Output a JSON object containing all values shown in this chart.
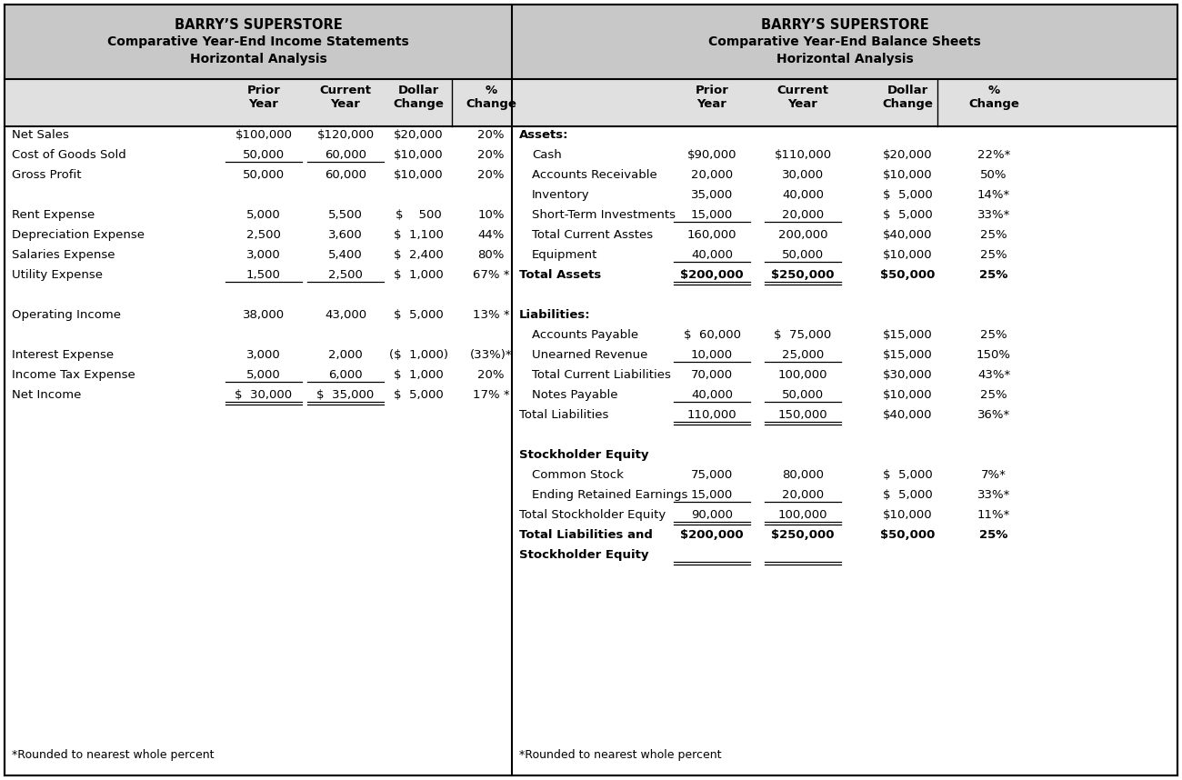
{
  "fig_width": 13.0,
  "fig_height": 8.58,
  "bg_color": "#ffffff",
  "header_bg": "#c8c8c8",
  "subheader_bg": "#e0e0e0",
  "left_title": [
    "BARRY’S SUPERSTORE",
    "Comparative Year-End Income Statements",
    "Horizontal Analysis"
  ],
  "right_title": [
    "BARRY’S SUPERSTORE",
    "Comparative Year-End Balance Sheets",
    "Horizontal Analysis"
  ],
  "left_col_headers": [
    "Prior\nYear",
    "Current\nYear",
    "Dollar\nChange",
    "%\nChange"
  ],
  "right_col_headers": [
    "Prior\nYear",
    "Current\nYear",
    "Dollar\nChange",
    "%\nChange"
  ],
  "left_rows": [
    {
      "label": "Net Sales",
      "prior": "$100,000",
      "current": "$120,000",
      "dollar": "$20,000",
      "pct": "20%",
      "bold": false,
      "ul_p": false,
      "ul_c": false,
      "dul": false
    },
    {
      "label": "Cost of Goods Sold",
      "prior": "50,000",
      "current": "60,000",
      "dollar": "$10,000",
      "pct": "20%",
      "bold": false,
      "ul_p": true,
      "ul_c": true,
      "dul": false
    },
    {
      "label": "Gross Profit",
      "prior": "50,000",
      "current": "60,000",
      "dollar": "$10,000",
      "pct": "20%",
      "bold": false,
      "ul_p": false,
      "ul_c": false,
      "dul": false
    },
    {
      "label": "",
      "prior": "",
      "current": "",
      "dollar": "",
      "pct": "",
      "bold": false,
      "ul_p": false,
      "ul_c": false,
      "dul": false
    },
    {
      "label": "Rent Expense",
      "prior": "5,000",
      "current": "5,500",
      "dollar": "$    500",
      "pct": "10%",
      "bold": false,
      "ul_p": false,
      "ul_c": false,
      "dul": false
    },
    {
      "label": "Depreciation Expense",
      "prior": "2,500",
      "current": "3,600",
      "dollar": "$  1,100",
      "pct": "44%",
      "bold": false,
      "ul_p": false,
      "ul_c": false,
      "dul": false
    },
    {
      "label": "Salaries Expense",
      "prior": "3,000",
      "current": "5,400",
      "dollar": "$  2,400",
      "pct": "80%",
      "bold": false,
      "ul_p": false,
      "ul_c": false,
      "dul": false
    },
    {
      "label": "Utility Expense",
      "prior": "1,500",
      "current": "2,500",
      "dollar": "$  1,000",
      "pct": "67% *",
      "bold": false,
      "ul_p": true,
      "ul_c": true,
      "dul": false
    },
    {
      "label": "",
      "prior": "",
      "current": "",
      "dollar": "",
      "pct": "",
      "bold": false,
      "ul_p": false,
      "ul_c": false,
      "dul": false
    },
    {
      "label": "Operating Income",
      "prior": "38,000",
      "current": "43,000",
      "dollar": "$  5,000",
      "pct": "13% *",
      "bold": false,
      "ul_p": false,
      "ul_c": false,
      "dul": false
    },
    {
      "label": "",
      "prior": "",
      "current": "",
      "dollar": "",
      "pct": "",
      "bold": false,
      "ul_p": false,
      "ul_c": false,
      "dul": false
    },
    {
      "label": "Interest Expense",
      "prior": "3,000",
      "current": "2,000",
      "dollar": "($  1,000)",
      "pct": "(33%)*",
      "bold": false,
      "ul_p": false,
      "ul_c": false,
      "dul": false
    },
    {
      "label": "Income Tax Expense",
      "prior": "5,000",
      "current": "6,000",
      "dollar": "$  1,000",
      "pct": "20%",
      "bold": false,
      "ul_p": true,
      "ul_c": true,
      "dul": false
    },
    {
      "label": "Net Income",
      "prior": "$  30,000",
      "current": "$  35,000",
      "dollar": "$  5,000",
      "pct": "17% *",
      "bold": false,
      "ul_p": false,
      "ul_c": false,
      "dul": true
    }
  ],
  "right_rows": [
    {
      "label": "Assets:",
      "prior": "",
      "current": "",
      "dollar": "",
      "pct": "",
      "bold": true,
      "ul_p": false,
      "ul_c": false,
      "dul": false,
      "indent": false
    },
    {
      "label": "Cash",
      "prior": "$90,000",
      "current": "$110,000",
      "dollar": "$20,000",
      "pct": "22%*",
      "bold": false,
      "ul_p": false,
      "ul_c": false,
      "dul": false,
      "indent": true
    },
    {
      "label": "Accounts Receivable",
      "prior": "20,000",
      "current": "30,000",
      "dollar": "$10,000",
      "pct": "50%",
      "bold": false,
      "ul_p": false,
      "ul_c": false,
      "dul": false,
      "indent": true
    },
    {
      "label": "Inventory",
      "prior": "35,000",
      "current": "40,000",
      "dollar": "$  5,000",
      "pct": "14%*",
      "bold": false,
      "ul_p": false,
      "ul_c": false,
      "dul": false,
      "indent": true
    },
    {
      "label": "Short-Term Investments",
      "prior": "15,000",
      "current": "20,000",
      "dollar": "$  5,000",
      "pct": "33%*",
      "bold": false,
      "ul_p": true,
      "ul_c": true,
      "dul": false,
      "indent": true
    },
    {
      "label": "Total Current Asstes",
      "prior": "160,000",
      "current": "200,000",
      "dollar": "$40,000",
      "pct": "25%",
      "bold": false,
      "ul_p": false,
      "ul_c": false,
      "dul": false,
      "indent": true
    },
    {
      "label": "Equipment",
      "prior": "40,000",
      "current": "50,000",
      "dollar": "$10,000",
      "pct": "25%",
      "bold": false,
      "ul_p": true,
      "ul_c": true,
      "dul": false,
      "indent": true
    },
    {
      "label": "Total Assets",
      "prior": "$200,000",
      "current": "$250,000",
      "dollar": "$50,000",
      "pct": "25%",
      "bold": true,
      "ul_p": false,
      "ul_c": false,
      "dul": true,
      "indent": false
    },
    {
      "label": "",
      "prior": "",
      "current": "",
      "dollar": "",
      "pct": "",
      "bold": false,
      "ul_p": false,
      "ul_c": false,
      "dul": false,
      "indent": false
    },
    {
      "label": "Liabilities:",
      "prior": "",
      "current": "",
      "dollar": "",
      "pct": "",
      "bold": true,
      "ul_p": false,
      "ul_c": false,
      "dul": false,
      "indent": false
    },
    {
      "label": "Accounts Payable",
      "prior": "$  60,000",
      "current": "$  75,000",
      "dollar": "$15,000",
      "pct": "25%",
      "bold": false,
      "ul_p": false,
      "ul_c": false,
      "dul": false,
      "indent": true
    },
    {
      "label": "Unearned Revenue",
      "prior": "10,000",
      "current": "25,000",
      "dollar": "$15,000",
      "pct": "150%",
      "bold": false,
      "ul_p": true,
      "ul_c": true,
      "dul": false,
      "indent": true
    },
    {
      "label": "Total Current Liabilities",
      "prior": "70,000",
      "current": "100,000",
      "dollar": "$30,000",
      "pct": "43%*",
      "bold": false,
      "ul_p": false,
      "ul_c": false,
      "dul": false,
      "indent": true
    },
    {
      "label": "Notes Payable",
      "prior": "40,000",
      "current": "50,000",
      "dollar": "$10,000",
      "pct": "25%",
      "bold": false,
      "ul_p": true,
      "ul_c": true,
      "dul": false,
      "indent": true
    },
    {
      "label": "Total Liabilities",
      "prior": "110,000",
      "current": "150,000",
      "dollar": "$40,000",
      "pct": "36%*",
      "bold": false,
      "ul_p": false,
      "ul_c": false,
      "dul": true,
      "indent": false
    },
    {
      "label": "",
      "prior": "",
      "current": "",
      "dollar": "",
      "pct": "",
      "bold": false,
      "ul_p": false,
      "ul_c": false,
      "dul": false,
      "indent": false
    },
    {
      "label": "Stockholder Equity",
      "prior": "",
      "current": "",
      "dollar": "",
      "pct": "",
      "bold": true,
      "ul_p": false,
      "ul_c": false,
      "dul": false,
      "indent": false
    },
    {
      "label": "Common Stock",
      "prior": "75,000",
      "current": "80,000",
      "dollar": "$  5,000",
      "pct": "7%*",
      "bold": false,
      "ul_p": false,
      "ul_c": false,
      "dul": false,
      "indent": true
    },
    {
      "label": "Ending Retained Earnings",
      "prior": "15,000",
      "current": "20,000",
      "dollar": "$  5,000",
      "pct": "33%*",
      "bold": false,
      "ul_p": true,
      "ul_c": true,
      "dul": false,
      "indent": true
    },
    {
      "label": "Total Stockholder Equity",
      "prior": "90,000",
      "current": "100,000",
      "dollar": "$10,000",
      "pct": "11%*",
      "bold": false,
      "ul_p": false,
      "ul_c": false,
      "dul": true,
      "indent": false
    },
    {
      "label": "Total Liabilities and",
      "prior": "$200,000",
      "current": "$250,000",
      "dollar": "$50,000",
      "pct": "25%",
      "bold": true,
      "ul_p": false,
      "ul_c": false,
      "dul": false,
      "indent": false
    },
    {
      "label": "Stockholder Equity",
      "prior": "",
      "current": "",
      "dollar": "",
      "pct": "",
      "bold": true,
      "ul_p": false,
      "ul_c": false,
      "dul": true,
      "indent": false
    }
  ],
  "left_footnote": "*Rounded to nearest whole percent",
  "right_footnote": "*Rounded to nearest whole percent"
}
